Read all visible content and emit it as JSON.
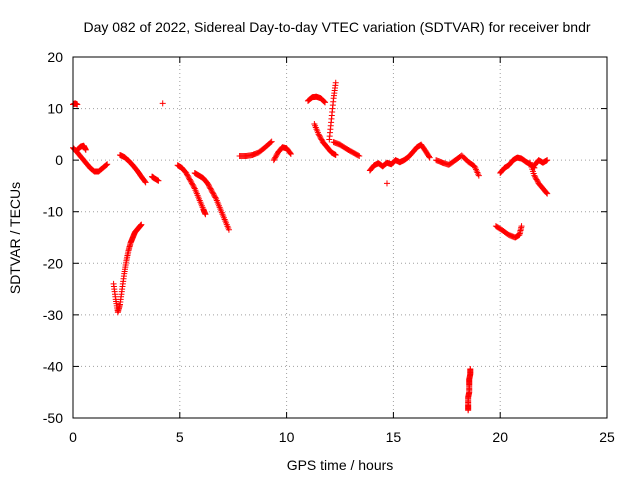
{
  "chart_data": {
    "type": "scatter",
    "title": "Day 082 of 2022, Sidereal Day-to-day VTEC variation (SDTVAR) for receiver bndr",
    "xlabel": "GPS time / hours",
    "ylabel": "SDTVAR / TECUs",
    "xlim": [
      0,
      25
    ],
    "ylim": [
      -50,
      20
    ],
    "xticks": [
      "0",
      "5",
      "10",
      "15",
      "20",
      "25"
    ],
    "yticks": [
      "20",
      "10",
      "0",
      "-10",
      "-20",
      "-30",
      "-40",
      "-50"
    ],
    "grid": true,
    "marker": "plus",
    "color": "#ff0000",
    "segments": [
      {
        "x": [
          0.0,
          0.1,
          0.2
        ],
        "y": [
          10.8,
          11.0,
          10.8
        ]
      },
      {
        "x": [
          0.0,
          0.2,
          0.4,
          0.6,
          0.8,
          1.0,
          1.2,
          1.4,
          1.6
        ],
        "y": [
          2.4,
          1.5,
          0.5,
          -0.5,
          -1.5,
          -2.2,
          -2.2,
          -1.5,
          -0.8
        ]
      },
      {
        "x": [
          0.2,
          0.35,
          0.5,
          0.6
        ],
        "y": [
          2.0,
          2.6,
          2.8,
          2.0
        ]
      },
      {
        "x": [
          1.9,
          2.0,
          2.1,
          2.2,
          2.3,
          2.4,
          2.5,
          2.6,
          2.7,
          2.8,
          2.9,
          3.0,
          3.1,
          3.2
        ],
        "y": [
          -24.0,
          -27.0,
          -29.5,
          -28.0,
          -25.0,
          -22.0,
          -19.5,
          -17.5,
          -16.0,
          -15.0,
          -14.0,
          -13.5,
          -13.0,
          -12.5
        ]
      },
      {
        "x": [
          2.2,
          2.4,
          2.6,
          2.8,
          3.0,
          3.2,
          3.4
        ],
        "y": [
          1.0,
          0.6,
          -0.1,
          -1.0,
          -2.0,
          -3.2,
          -4.3
        ]
      },
      {
        "x": [
          3.7,
          3.8,
          4.0
        ],
        "y": [
          -3.2,
          -3.5,
          -4.0
        ]
      },
      {
        "x": [
          4.2
        ],
        "y": [
          11.0
        ]
      },
      {
        "x": [
          4.9,
          5.1,
          5.3,
          5.5,
          5.7,
          5.9,
          6.1,
          6.2
        ],
        "y": [
          -1.0,
          -1.5,
          -2.5,
          -4.0,
          -5.5,
          -7.5,
          -9.5,
          -10.5
        ]
      },
      {
        "x": [
          5.7,
          5.9,
          6.1,
          6.3,
          6.5,
          6.7,
          6.9,
          7.1,
          7.3
        ],
        "y": [
          -2.5,
          -3.0,
          -3.5,
          -4.5,
          -6.0,
          -7.5,
          -9.5,
          -11.5,
          -13.5
        ]
      },
      {
        "x": [
          7.8,
          8.1,
          8.4,
          8.7,
          9.0,
          9.3
        ],
        "y": [
          0.8,
          0.8,
          1.0,
          1.5,
          2.5,
          3.6
        ]
      },
      {
        "x": [
          9.4,
          9.6,
          9.8,
          10.0,
          10.2
        ],
        "y": [
          0.0,
          1.5,
          2.5,
          2.3,
          1.2
        ]
      },
      {
        "x": [
          11.0,
          11.2,
          11.4,
          11.6,
          11.8
        ],
        "y": [
          11.5,
          12.2,
          12.3,
          12.0,
          11.2
        ]
      },
      {
        "x": [
          11.3,
          11.5,
          11.7,
          11.9,
          12.1,
          12.3
        ],
        "y": [
          7.0,
          5.0,
          3.5,
          2.5,
          1.5,
          1.0
        ]
      },
      {
        "x": [
          12.0,
          12.1,
          12.2,
          12.3
        ],
        "y": [
          4.0,
          8.0,
          12.0,
          15.0
        ]
      },
      {
        "x": [
          12.2,
          12.5,
          12.8,
          13.1,
          13.4
        ],
        "y": [
          3.5,
          3.0,
          2.2,
          1.5,
          0.8
        ]
      },
      {
        "x": [
          13.9,
          14.1,
          14.3,
          14.5,
          14.7,
          14.9,
          15.1,
          15.3,
          15.5,
          15.7,
          15.9,
          16.1,
          16.3,
          16.5,
          16.7
        ],
        "y": [
          -2.0,
          -1.0,
          -0.6,
          -1.2,
          -0.5,
          -0.8,
          0.0,
          -0.4,
          0.0,
          0.6,
          1.5,
          2.5,
          3.0,
          1.8,
          0.5
        ]
      },
      {
        "x": [
          14.7
        ],
        "y": [
          -4.5
        ]
      },
      {
        "x": [
          17.0,
          17.3,
          17.6,
          17.9,
          18.2,
          18.5,
          18.8,
          19.0
        ],
        "y": [
          0.0,
          -0.5,
          -0.9,
          0.0,
          0.9,
          -0.3,
          -1.2,
          -3.0
        ]
      },
      {
        "x": [
          18.5,
          18.5,
          18.5,
          18.55,
          18.55,
          18.55,
          18.6,
          18.6
        ],
        "y": [
          -48.5,
          -47.5,
          -46.0,
          -45.0,
          -43.5,
          -42.5,
          -41.5,
          -40.5
        ]
      },
      {
        "x": [
          19.8,
          20.1,
          20.4,
          20.7,
          20.9,
          21.0
        ],
        "y": [
          -12.8,
          -13.6,
          -14.5,
          -15.0,
          -14.5,
          -12.8
        ]
      },
      {
        "x": [
          20.0,
          20.2,
          20.4,
          20.6,
          20.8,
          21.0,
          21.2,
          21.4,
          21.6
        ],
        "y": [
          -2.5,
          -1.5,
          -1.0,
          0.0,
          0.5,
          0.3,
          -0.3,
          -0.8,
          -1.5
        ]
      },
      {
        "x": [
          21.4,
          21.6,
          21.8,
          22.0,
          22.2
        ],
        "y": [
          -0.5,
          -3.0,
          -4.5,
          -5.5,
          -6.5
        ]
      },
      {
        "x": [
          21.6,
          21.8,
          22.0,
          22.2
        ],
        "y": [
          -1.0,
          0.0,
          -0.5,
          0.0
        ]
      }
    ]
  }
}
